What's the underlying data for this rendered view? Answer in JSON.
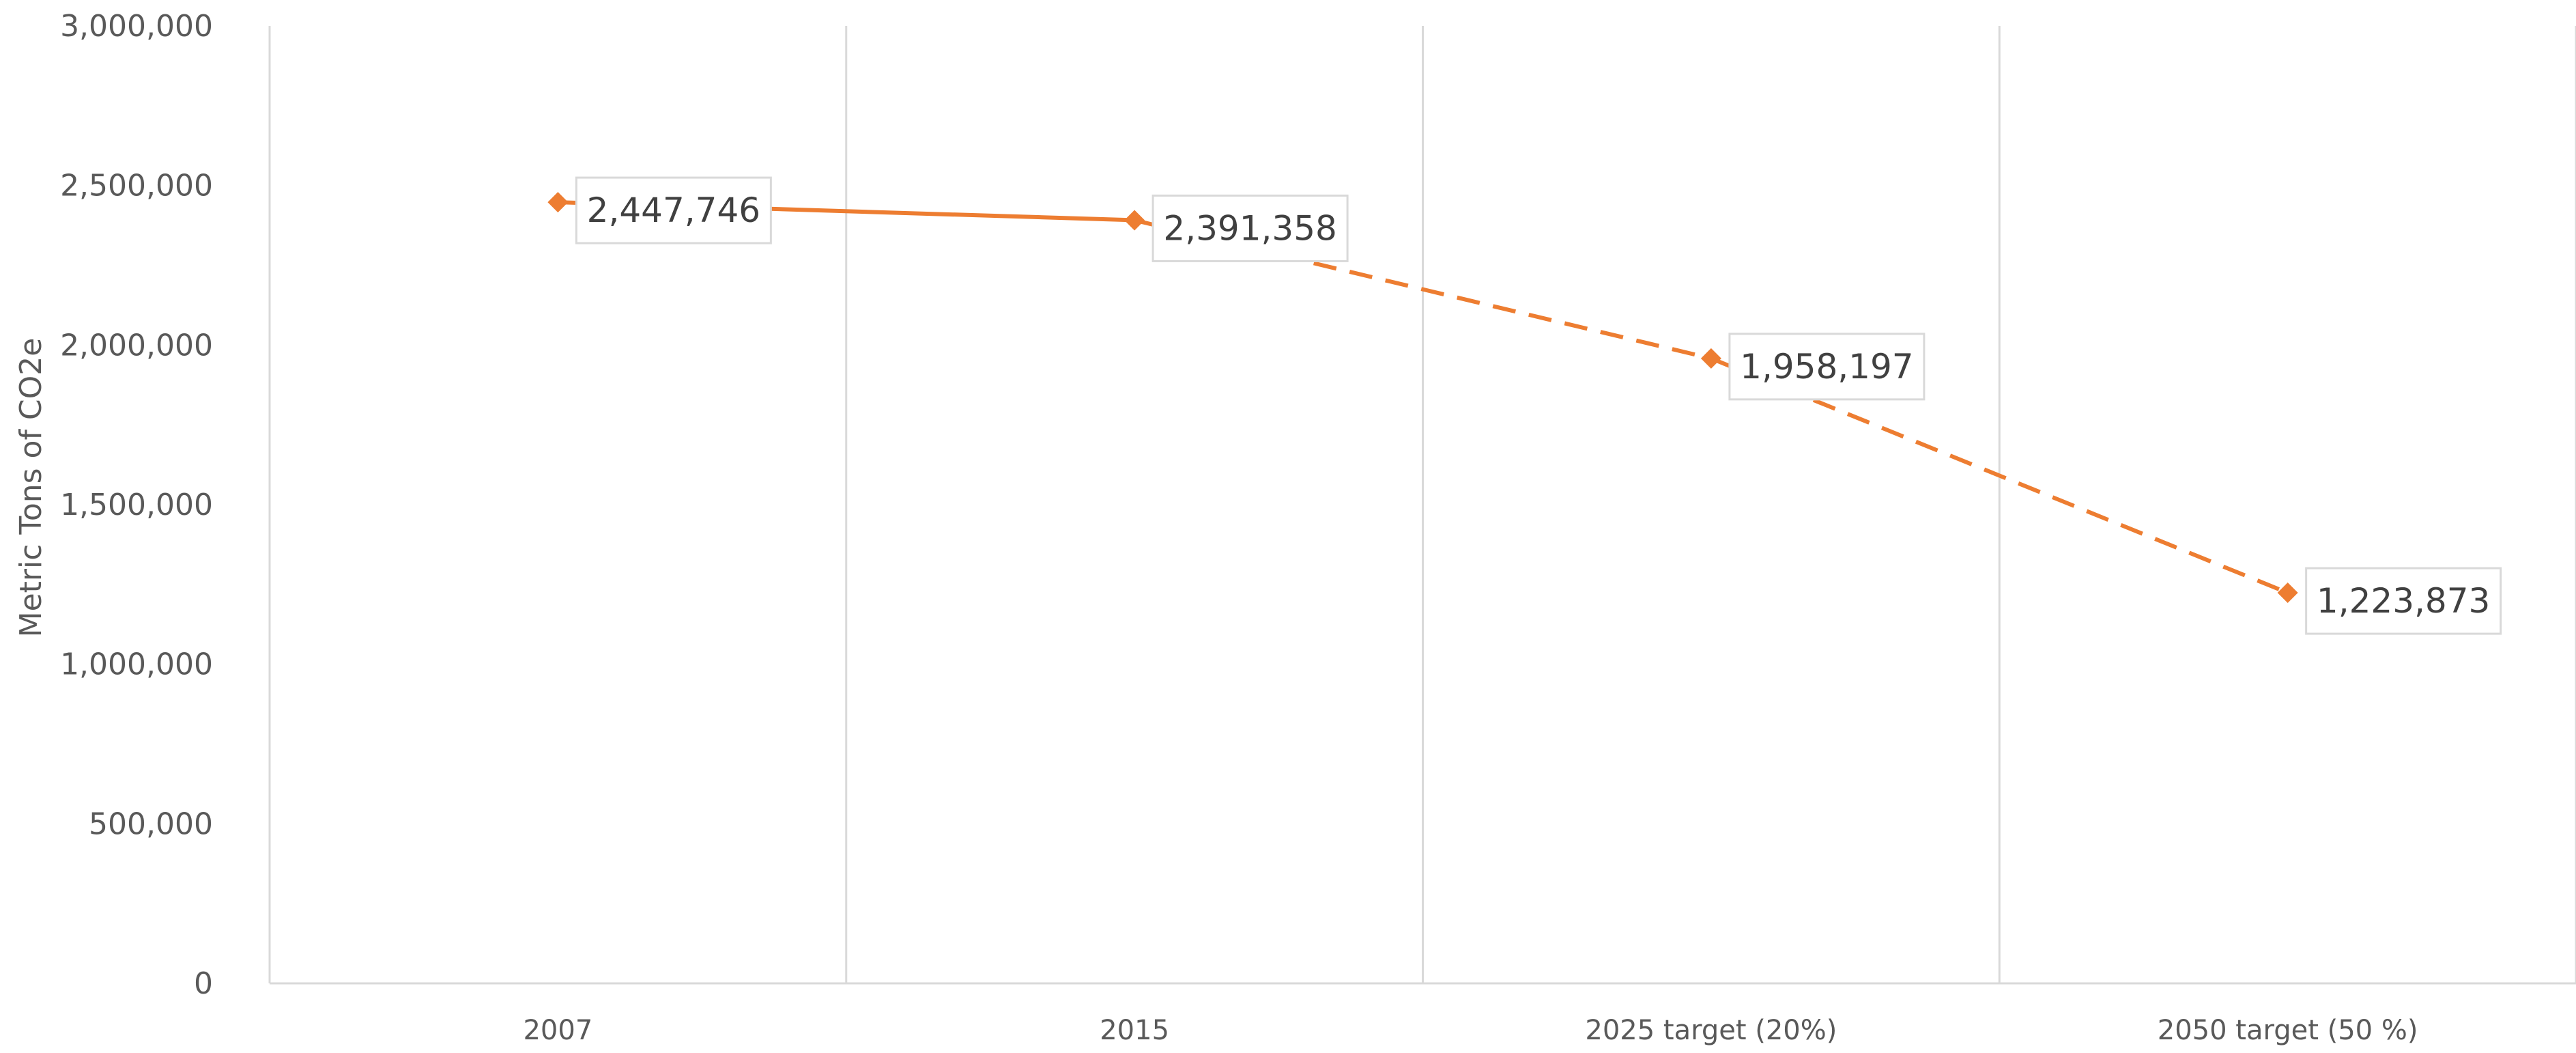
{
  "chart_data": {
    "type": "line",
    "title": "",
    "xlabel": "",
    "ylabel": "Metric Tons of CO2e",
    "ylim": [
      0,
      3000000
    ],
    "ytick_labels": [
      "0",
      "500,000",
      "1,000,000",
      "1,500,000",
      "2,000,000",
      "2,500,000",
      "3,000,000"
    ],
    "categories": [
      "2007",
      "2015",
      "2025 target (20%)",
      "2050 target (50 %)"
    ],
    "series": [
      {
        "values": [
          2447746,
          2391358,
          1958197,
          1223873
        ],
        "data_labels": [
          "2,447,746",
          "2,391,358",
          "1,958,197",
          "1,223,873"
        ],
        "color": "#ed7d31",
        "line_style": [
          "solid",
          "dashed",
          "dashed"
        ]
      }
    ],
    "grid": {
      "vertical": true,
      "horizontal": false
    },
    "colors": {
      "line": "#ed7d31",
      "grid": "#d9d9d9",
      "text": "#595959",
      "label_border": "#d9d9d9"
    }
  }
}
